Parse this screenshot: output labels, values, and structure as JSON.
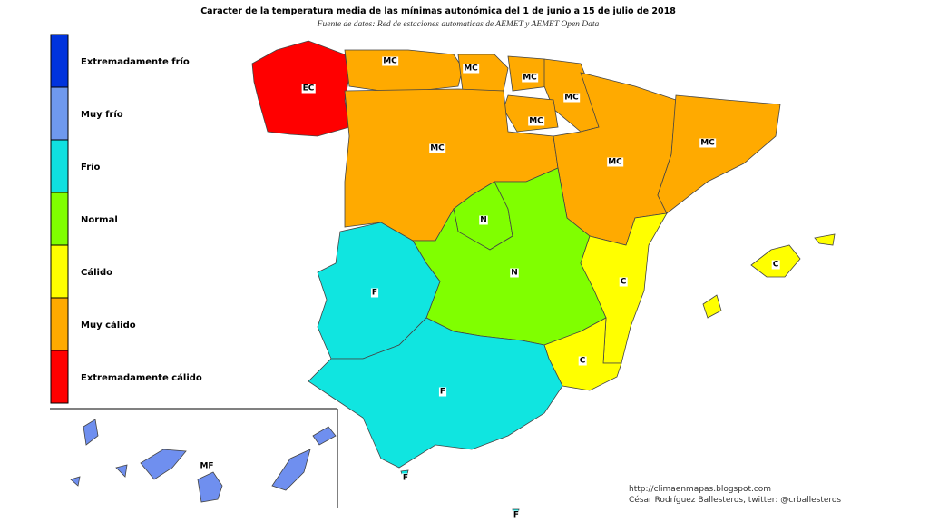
{
  "title": "Caracter de la temperatura media de las mínimas autonómica del 1 de junio a 15 de julio de 2018",
  "subtitle": "Fuente de datos: Red de estaciones automaticas de AEMET y AEMET Open Data",
  "legend": [
    {
      "label": "Extremadamente frío",
      "color": "#0033dd"
    },
    {
      "label": "Muy frío",
      "color": "#6f99ee"
    },
    {
      "label": "Frío",
      "color": "#10e0e0"
    },
    {
      "label": "Normal",
      "color": "#80ff00"
    },
    {
      "label": "Cálido",
      "color": "#ffff00"
    },
    {
      "label": "Muy cálido",
      "color": "#ffaa00"
    },
    {
      "label": "Extremadamente cálido",
      "color": "#ff0000"
    }
  ],
  "regions": [
    {
      "label": "EC",
      "color": "#ff0000"
    },
    {
      "label": "MC",
      "color": "#ffaa00"
    },
    {
      "label": "MC",
      "color": "#ffaa00"
    },
    {
      "label": "MC",
      "color": "#ffaa00"
    },
    {
      "label": "MC",
      "color": "#ffaa00"
    },
    {
      "label": "MC",
      "color": "#ffaa00"
    },
    {
      "label": "MC",
      "color": "#ffaa00"
    },
    {
      "label": "MC",
      "color": "#ffaa00"
    },
    {
      "label": "MC",
      "color": "#ffaa00"
    },
    {
      "label": "N",
      "color": "#80ff00"
    },
    {
      "label": "N",
      "color": "#80ff00"
    },
    {
      "label": "F",
      "color": "#10e5e0"
    },
    {
      "label": "C",
      "color": "#ffff00"
    },
    {
      "label": "C",
      "color": "#ffff00"
    },
    {
      "label": "F",
      "color": "#10e5e0"
    },
    {
      "label": "C",
      "color": "#ffff00"
    },
    {
      "label": "MF",
      "color": "#6f8fef"
    },
    {
      "label": "F",
      "color": "#10e5e0"
    },
    {
      "label": "F",
      "color": "#10e5e0"
    }
  ],
  "credits": [
    "http://climaenmapas.blogspot.com",
    "César Rodríguez Ballesteros, twitter: @crballesteros"
  ]
}
